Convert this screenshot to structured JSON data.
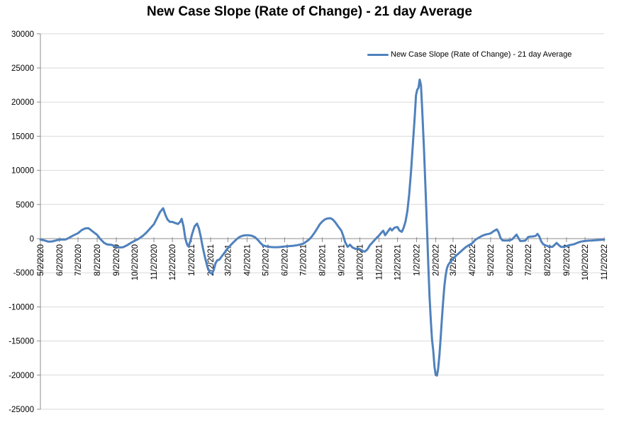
{
  "title": "New Case Slope (Rate of Change) - 21 day Average",
  "legend": {
    "label": "New Case Slope (Rate of Change) - 21 day Average"
  },
  "colors": {
    "line": "#4F81BD",
    "gridline": "#D9D9D9",
    "axis": "#8C8C8C",
    "text": "#000000",
    "background": "#FFFFFF"
  },
  "chart_data": {
    "type": "line",
    "title": "New Case Slope (Rate of Change) - 21 day Average",
    "xlabel": "",
    "ylabel": "",
    "grid": true,
    "legend_position": "inside-top-right",
    "y_axis": {
      "min": -25000,
      "max": 30000,
      "step": 5000,
      "tick_labels": [
        30000,
        25000,
        20000,
        15000,
        10000,
        5000,
        0,
        -5000,
        -10000,
        -15000,
        -20000,
        -25000
      ]
    },
    "x_axis": {
      "unit": "daily categories (dates)",
      "total_days": 914,
      "tick_labels": [
        {
          "label": "5/2/2020",
          "day": 0
        },
        {
          "label": "6/2/2020",
          "day": 31
        },
        {
          "label": "7/2/2020",
          "day": 61
        },
        {
          "label": "8/2/2020",
          "day": 92
        },
        {
          "label": "9/2/2020",
          "day": 123
        },
        {
          "label": "10/2/2020",
          "day": 153
        },
        {
          "label": "11/2/2020",
          "day": 184
        },
        {
          "label": "12/2/2020",
          "day": 214
        },
        {
          "label": "1/2/2021",
          "day": 245
        },
        {
          "label": "2/2/2021",
          "day": 276
        },
        {
          "label": "3/2/2021",
          "day": 304
        },
        {
          "label": "4/2/2021",
          "day": 335
        },
        {
          "label": "5/2/2021",
          "day": 365
        },
        {
          "label": "6/2/2021",
          "day": 396
        },
        {
          "label": "7/2/2021",
          "day": 426
        },
        {
          "label": "8/2/2021",
          "day": 457
        },
        {
          "label": "9/2/2021",
          "day": 488
        },
        {
          "label": "10/2/2021",
          "day": 518
        },
        {
          "label": "11/2/2021",
          "day": 549
        },
        {
          "label": "12/2/2021",
          "day": 579
        },
        {
          "label": "1/2/2022",
          "day": 610
        },
        {
          "label": "2/2/2022",
          "day": 641
        },
        {
          "label": "3/2/2022",
          "day": 669
        },
        {
          "label": "4/2/2022",
          "day": 700
        },
        {
          "label": "5/2/2022",
          "day": 730
        },
        {
          "label": "6/2/2022",
          "day": 761
        },
        {
          "label": "7/2/2022",
          "day": 791
        },
        {
          "label": "8/2/2022",
          "day": 822
        },
        {
          "label": "9/2/2022",
          "day": 853
        },
        {
          "label": "10/2/2022",
          "day": 883
        },
        {
          "label": "11/2/2022",
          "day": 914
        }
      ]
    },
    "series": [
      {
        "name": "New Case Slope (Rate of Change) - 21 day Average",
        "color": "#4F81BD",
        "points": [
          [
            0,
            -150
          ],
          [
            6,
            -250
          ],
          [
            13,
            -450
          ],
          [
            19,
            -420
          ],
          [
            26,
            -250
          ],
          [
            32,
            -150
          ],
          [
            41,
            -120
          ],
          [
            47,
            150
          ],
          [
            54,
            500
          ],
          [
            61,
            800
          ],
          [
            67,
            1250
          ],
          [
            73,
            1500
          ],
          [
            78,
            1520
          ],
          [
            84,
            1100
          ],
          [
            92,
            550
          ],
          [
            97,
            -50
          ],
          [
            103,
            -600
          ],
          [
            108,
            -850
          ],
          [
            115,
            -900
          ],
          [
            122,
            -1150
          ],
          [
            128,
            -1300
          ],
          [
            134,
            -1250
          ],
          [
            141,
            -950
          ],
          [
            147,
            -600
          ],
          [
            153,
            -300
          ],
          [
            158,
            -100
          ],
          [
            162,
            150
          ],
          [
            166,
            400
          ],
          [
            171,
            800
          ],
          [
            176,
            1300
          ],
          [
            181,
            1800
          ],
          [
            184,
            2100
          ],
          [
            189,
            3000
          ],
          [
            194,
            3900
          ],
          [
            199,
            4450
          ],
          [
            203,
            3400
          ],
          [
            206,
            2800
          ],
          [
            210,
            2450
          ],
          [
            214,
            2450
          ],
          [
            218,
            2300
          ],
          [
            223,
            2150
          ],
          [
            227,
            2500
          ],
          [
            229,
            2900
          ],
          [
            232,
            1800
          ],
          [
            235,
            0
          ],
          [
            238,
            -900
          ],
          [
            240,
            -1150
          ],
          [
            243,
            -400
          ],
          [
            246,
            700
          ],
          [
            250,
            1800
          ],
          [
            254,
            2200
          ],
          [
            257,
            1500
          ],
          [
            260,
            300
          ],
          [
            263,
            -1200
          ],
          [
            267,
            -2800
          ],
          [
            271,
            -4200
          ],
          [
            275,
            -5000
          ],
          [
            278,
            -5150
          ],
          [
            281,
            -4600
          ],
          [
            284,
            -3600
          ],
          [
            287,
            -3150
          ],
          [
            290,
            -3100
          ],
          [
            294,
            -2600
          ],
          [
            299,
            -2000
          ],
          [
            304,
            -1400
          ],
          [
            309,
            -900
          ],
          [
            314,
            -450
          ],
          [
            318,
            -100
          ],
          [
            323,
            250
          ],
          [
            328,
            430
          ],
          [
            333,
            500
          ],
          [
            338,
            490
          ],
          [
            343,
            420
          ],
          [
            348,
            200
          ],
          [
            352,
            -150
          ],
          [
            357,
            -650
          ],
          [
            361,
            -1000
          ],
          [
            365,
            -1100
          ],
          [
            371,
            -1200
          ],
          [
            378,
            -1250
          ],
          [
            385,
            -1250
          ],
          [
            391,
            -1200
          ],
          [
            396,
            -1150
          ],
          [
            403,
            -1100
          ],
          [
            410,
            -1050
          ],
          [
            417,
            -950
          ],
          [
            422,
            -850
          ],
          [
            426,
            -750
          ],
          [
            431,
            -450
          ],
          [
            436,
            -100
          ],
          [
            440,
            300
          ],
          [
            444,
            800
          ],
          [
            449,
            1500
          ],
          [
            453,
            2100
          ],
          [
            457,
            2500
          ],
          [
            461,
            2800
          ],
          [
            465,
            2950
          ],
          [
            470,
            3000
          ],
          [
            474,
            2800
          ],
          [
            478,
            2400
          ],
          [
            482,
            1900
          ],
          [
            488,
            1150
          ],
          [
            491,
            400
          ],
          [
            494,
            -500
          ],
          [
            498,
            -1200
          ],
          [
            502,
            -900
          ],
          [
            506,
            -1300
          ],
          [
            511,
            -1500
          ],
          [
            515,
            -1450
          ],
          [
            518,
            -1550
          ],
          [
            522,
            -1800
          ],
          [
            526,
            -1900
          ],
          [
            530,
            -1600
          ],
          [
            534,
            -1000
          ],
          [
            539,
            -500
          ],
          [
            543,
            -100
          ],
          [
            546,
            200
          ],
          [
            549,
            450
          ],
          [
            553,
            900
          ],
          [
            556,
            1150
          ],
          [
            559,
            500
          ],
          [
            563,
            1000
          ],
          [
            567,
            1500
          ],
          [
            570,
            1200
          ],
          [
            574,
            1600
          ],
          [
            579,
            1700
          ],
          [
            582,
            1200
          ],
          [
            586,
            1000
          ],
          [
            589,
            1600
          ],
          [
            592,
            2500
          ],
          [
            595,
            4000
          ],
          [
            598,
            6500
          ],
          [
            601,
            10000
          ],
          [
            604,
            14000
          ],
          [
            607,
            18000
          ],
          [
            609,
            21000
          ],
          [
            611,
            21800
          ],
          [
            613,
            22100
          ],
          [
            615,
            23300
          ],
          [
            617,
            22500
          ],
          [
            619,
            19000
          ],
          [
            622,
            13000
          ],
          [
            625,
            6000
          ],
          [
            627,
            1000
          ],
          [
            629,
            -4000
          ],
          [
            631,
            -8500
          ],
          [
            633,
            -12000
          ],
          [
            635,
            -14800
          ],
          [
            637,
            -16500
          ],
          [
            639,
            -18800
          ],
          [
            641,
            -20000
          ],
          [
            643,
            -20050
          ],
          [
            645,
            -19000
          ],
          [
            647,
            -17000
          ],
          [
            649,
            -14500
          ],
          [
            651,
            -11800
          ],
          [
            653,
            -9200
          ],
          [
            655,
            -7000
          ],
          [
            657,
            -5400
          ],
          [
            659,
            -4400
          ],
          [
            661,
            -3900
          ],
          [
            664,
            -3500
          ],
          [
            669,
            -3000
          ],
          [
            674,
            -2500
          ],
          [
            679,
            -2100
          ],
          [
            684,
            -1700
          ],
          [
            689,
            -1300
          ],
          [
            694,
            -1000
          ],
          [
            700,
            -700
          ],
          [
            705,
            -200
          ],
          [
            710,
            100
          ],
          [
            716,
            400
          ],
          [
            722,
            600
          ],
          [
            727,
            700
          ],
          [
            730,
            770
          ],
          [
            735,
            1100
          ],
          [
            740,
            1360
          ],
          [
            743,
            900
          ],
          [
            746,
            100
          ],
          [
            749,
            -250
          ],
          [
            753,
            -280
          ],
          [
            757,
            -270
          ],
          [
            761,
            -250
          ],
          [
            765,
            -100
          ],
          [
            769,
            300
          ],
          [
            772,
            590
          ],
          [
            775,
            100
          ],
          [
            778,
            -350
          ],
          [
            782,
            -330
          ],
          [
            786,
            -300
          ],
          [
            791,
            240
          ],
          [
            795,
            300
          ],
          [
            799,
            320
          ],
          [
            803,
            400
          ],
          [
            806,
            700
          ],
          [
            809,
            300
          ],
          [
            812,
            -400
          ],
          [
            815,
            -800
          ],
          [
            818,
            -950
          ],
          [
            822,
            -1080
          ],
          [
            826,
            -1180
          ],
          [
            830,
            -1220
          ],
          [
            834,
            -900
          ],
          [
            837,
            -630
          ],
          [
            840,
            -900
          ],
          [
            844,
            -1200
          ],
          [
            848,
            -1220
          ],
          [
            853,
            -1100
          ],
          [
            857,
            -980
          ],
          [
            861,
            -900
          ],
          [
            866,
            -800
          ],
          [
            871,
            -600
          ],
          [
            876,
            -450
          ],
          [
            880,
            -380
          ],
          [
            883,
            -350
          ],
          [
            888,
            -300
          ],
          [
            893,
            -280
          ],
          [
            898,
            -250
          ],
          [
            903,
            -220
          ],
          [
            908,
            -190
          ],
          [
            914,
            -130
          ]
        ]
      }
    ]
  }
}
